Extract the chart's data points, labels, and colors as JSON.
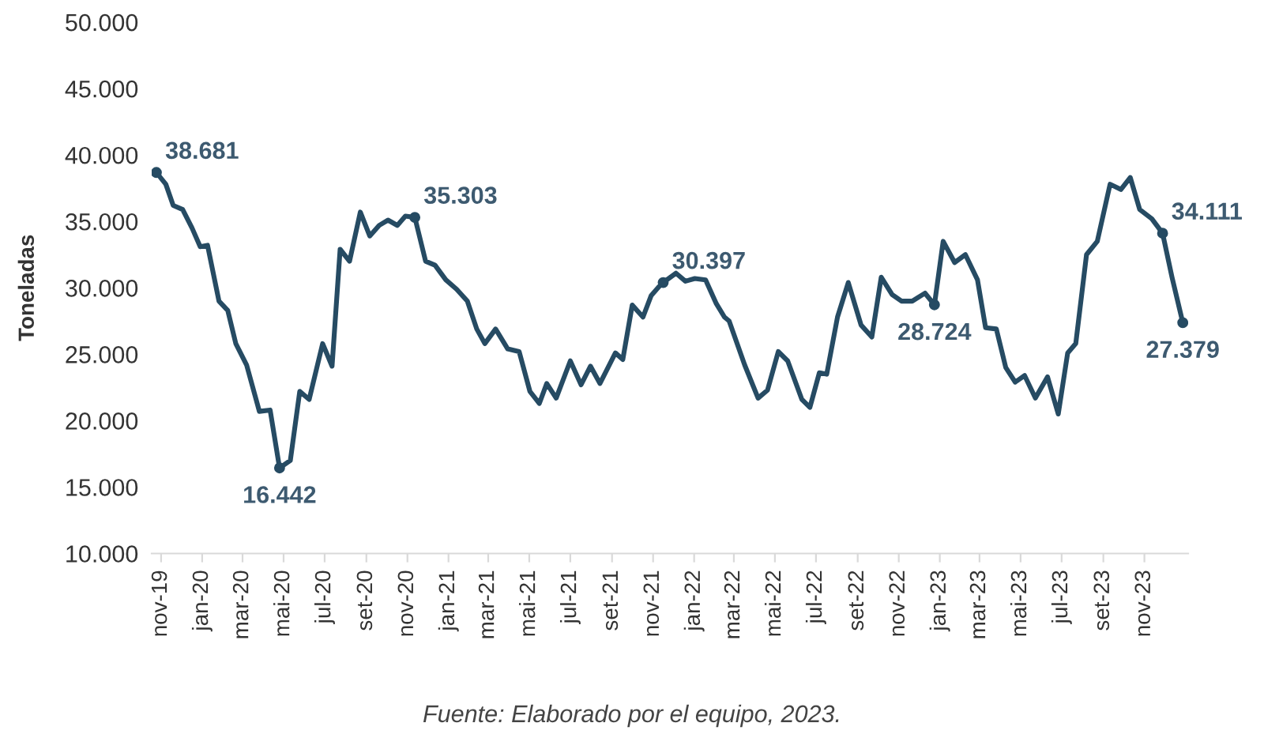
{
  "chart_data": {
    "type": "line",
    "ylabel": "Toneladas",
    "x": [
      "2019-10-25",
      "2019-11-08",
      "2019-11-19",
      "2019-12-03",
      "2019-12-17",
      "2019-12-29",
      "2020-01-09",
      "2020-01-26",
      "2020-02-08",
      "2020-02-20",
      "2020-03-07",
      "2020-03-26",
      "2020-04-11",
      "2020-04-25",
      "2020-05-11",
      "2020-05-25",
      "2020-06-08",
      "2020-06-28",
      "2020-07-12",
      "2020-07-24",
      "2020-08-07",
      "2020-08-23",
      "2020-09-06",
      "2020-09-20",
      "2020-10-03",
      "2020-10-17",
      "2020-10-29",
      "2020-11-12",
      "2020-11-28",
      "2020-12-12",
      "2020-12-28",
      "2021-01-13",
      "2021-01-29",
      "2021-02-12",
      "2021-02-24",
      "2021-03-12",
      "2021-03-30",
      "2021-04-16",
      "2021-05-02",
      "2021-05-16",
      "2021-05-27",
      "2021-06-10",
      "2021-07-01",
      "2021-07-17",
      "2021-07-31",
      "2021-08-14",
      "2021-09-06",
      "2021-09-17",
      "2021-10-01",
      "2021-10-17",
      "2021-10-29",
      "2021-11-10",
      "2021-11-16",
      "2021-12-05",
      "2021-12-19",
      "2022-01-02",
      "2022-01-18",
      "2022-02-03",
      "2022-02-15",
      "2022-02-22",
      "2022-03-17",
      "2022-04-06",
      "2022-04-20",
      "2022-05-06",
      "2022-05-20",
      "2022-06-10",
      "2022-06-22",
      "2022-07-06",
      "2022-07-17",
      "2022-08-02",
      "2022-08-18",
      "2022-09-06",
      "2022-09-22",
      "2022-10-06",
      "2022-10-22",
      "2022-11-05",
      "2022-11-21",
      "2022-12-10",
      "2022-12-24",
      "2023-01-06",
      "2023-01-23",
      "2023-02-08",
      "2023-02-26",
      "2023-03-10",
      "2023-03-26",
      "2023-04-09",
      "2023-04-23",
      "2023-05-07",
      "2023-05-23",
      "2023-06-10",
      "2023-06-26",
      "2023-07-10",
      "2023-07-22",
      "2023-08-07",
      "2023-08-23",
      "2023-09-11",
      "2023-09-27",
      "2023-10-11",
      "2023-10-25",
      "2023-11-12",
      "2023-11-28",
      "2023-12-12",
      "2023-12-28"
    ],
    "series": [
      {
        "color": "#264b63",
        "values": [
          38681,
          37800,
          36200,
          35900,
          34500,
          33100,
          33200,
          29000,
          28300,
          25800,
          24200,
          20700,
          20800,
          16442,
          17000,
          22200,
          21600,
          25800,
          24100,
          32900,
          32000,
          35700,
          33900,
          34700,
          35100,
          34700,
          35400,
          35303,
          32000,
          31700,
          30600,
          29900,
          29000,
          26900,
          25800,
          26900,
          25400,
          25200,
          22200,
          21300,
          22800,
          21700,
          24500,
          22700,
          24100,
          22800,
          25100,
          24600,
          28700,
          27800,
          29400,
          30100,
          30397,
          31100,
          30500,
          30700,
          30600,
          28800,
          27800,
          27500,
          24200,
          21700,
          22300,
          25200,
          24500,
          21600,
          21000,
          23600,
          23500,
          27800,
          30400,
          27200,
          26300,
          30800,
          29500,
          29000,
          29000,
          29600,
          28724,
          33500,
          31900,
          32500,
          30600,
          27000,
          26900,
          24000,
          22900,
          23400,
          21700,
          23300,
          20500,
          25100,
          25800,
          32500,
          33500,
          37800,
          37400,
          38300,
          35900,
          35200,
          34111,
          30800,
          27379
        ]
      }
    ],
    "xlim": [
      "2019-10-18",
      "2024-01-05"
    ],
    "xticks": [
      {
        "value": "2019-11-01",
        "label": "nov-19"
      },
      {
        "value": "2020-01-01",
        "label": "jan-20"
      },
      {
        "value": "2020-03-01",
        "label": "mar-20"
      },
      {
        "value": "2020-05-01",
        "label": "mai-20"
      },
      {
        "value": "2020-07-01",
        "label": "jul-20"
      },
      {
        "value": "2020-09-01",
        "label": "set-20"
      },
      {
        "value": "2020-11-01",
        "label": "nov-20"
      },
      {
        "value": "2021-01-01",
        "label": "jan-21"
      },
      {
        "value": "2021-03-01",
        "label": "mar-21"
      },
      {
        "value": "2021-05-01",
        "label": "mai-21"
      },
      {
        "value": "2021-07-01",
        "label": "jul-21"
      },
      {
        "value": "2021-09-01",
        "label": "set-21"
      },
      {
        "value": "2021-11-01",
        "label": "nov-21"
      },
      {
        "value": "2022-01-01",
        "label": "jan-22"
      },
      {
        "value": "2022-03-01",
        "label": "mar-22"
      },
      {
        "value": "2022-05-01",
        "label": "mai-22"
      },
      {
        "value": "2022-07-01",
        "label": "jul-22"
      },
      {
        "value": "2022-09-01",
        "label": "set-22"
      },
      {
        "value": "2022-11-01",
        "label": "nov-22"
      },
      {
        "value": "2023-01-01",
        "label": "jan-23"
      },
      {
        "value": "2023-03-01",
        "label": "mar-23"
      },
      {
        "value": "2023-05-01",
        "label": "mai-23"
      },
      {
        "value": "2023-07-01",
        "label": "jul-23"
      },
      {
        "value": "2023-09-01",
        "label": "set-23"
      },
      {
        "value": "2023-11-01",
        "label": "nov-23"
      }
    ],
    "ylim": [
      10000,
      50000
    ],
    "yticks": [
      {
        "value": 10000,
        "label": "10.000"
      },
      {
        "value": 15000,
        "label": "15.000"
      },
      {
        "value": 20000,
        "label": "20.000"
      },
      {
        "value": 25000,
        "label": "25.000"
      },
      {
        "value": 30000,
        "label": "30.000"
      },
      {
        "value": 35000,
        "label": "35.000"
      },
      {
        "value": 40000,
        "label": "40.000"
      },
      {
        "value": 45000,
        "label": "45.000"
      },
      {
        "value": 50000,
        "label": "50.000"
      }
    ],
    "grid": false,
    "annotations": [
      {
        "text": "38.681",
        "x": "2019-10-25",
        "y": 38681
      },
      {
        "text": "16.442",
        "x": "2020-04-25",
        "y": 16442
      },
      {
        "text": "35.303",
        "x": "2020-11-12",
        "y": 35303
      },
      {
        "text": "30.397",
        "x": "2021-11-16",
        "y": 30397
      },
      {
        "text": "28.724",
        "x": "2022-12-24",
        "y": 28724
      },
      {
        "text": "34.111",
        "x": "2023-11-28",
        "y": 34111
      },
      {
        "text": "27.379",
        "x": "2023-12-28",
        "y": 27379
      },
      "Fuente: Elaborado por el equipo, 2023."
    ]
  }
}
